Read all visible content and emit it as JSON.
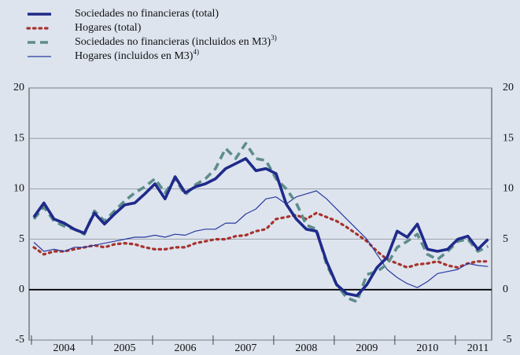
{
  "chart_data": {
    "type": "line",
    "categories": [
      null,
      null,
      null,
      "2004",
      null,
      null,
      null,
      null,
      null,
      "2005",
      null,
      null,
      null,
      null,
      null,
      "2006",
      null,
      null,
      null,
      null,
      null,
      "2007",
      null,
      null,
      null,
      null,
      null,
      "2008",
      null,
      null,
      null,
      null,
      null,
      "2009",
      null,
      null,
      null,
      null,
      null,
      "2010",
      null,
      null,
      null,
      null,
      "2011",
      null
    ],
    "series": [
      {
        "name": "Sociedades no financieras (total)",
        "color": "#1f2a8a",
        "style": "thick",
        "values": [
          7.2,
          8.6,
          7.0,
          6.6,
          6.0,
          5.6,
          7.6,
          6.5,
          7.5,
          8.4,
          8.6,
          9.5,
          10.5,
          9.0,
          11.2,
          9.6,
          10.2,
          10.5,
          11.0,
          12.0,
          12.5,
          13.0,
          11.8,
          12.0,
          11.5,
          8.5,
          7.0,
          6.0,
          5.8,
          2.8,
          0.5,
          -0.4,
          -0.6,
          0.5,
          2.2,
          3.2,
          5.8,
          5.2,
          6.5,
          4.0,
          3.8,
          4.0,
          5.0,
          5.3,
          4.0,
          5.0
        ]
      },
      {
        "name": "Hogares (total)",
        "color": "#a8322d",
        "style": "dotted",
        "values": [
          4.2,
          3.5,
          3.8,
          3.8,
          4.0,
          4.2,
          4.4,
          4.2,
          4.5,
          4.6,
          4.5,
          4.2,
          4.0,
          4.0,
          4.2,
          4.2,
          4.6,
          4.8,
          5.0,
          5.0,
          5.3,
          5.4,
          5.8,
          6.0,
          7.0,
          7.2,
          7.4,
          7.0,
          7.6,
          7.2,
          6.8,
          6.2,
          5.5,
          4.8,
          3.8,
          3.0,
          2.6,
          2.2,
          2.5,
          2.6,
          2.8,
          2.4,
          2.2,
          2.6,
          2.8,
          2.8
        ]
      },
      {
        "name": "Sociedades no financieras (incluidos en M3)",
        "footnote": "3)",
        "color": "#5e8c8c",
        "style": "dashed",
        "values": [
          7.0,
          8.2,
          6.8,
          6.3,
          6.0,
          5.5,
          7.8,
          6.8,
          7.8,
          8.8,
          9.6,
          10.2,
          11.0,
          9.6,
          11.0,
          9.4,
          10.4,
          11.0,
          12.0,
          14.0,
          13.0,
          14.5,
          13.0,
          12.8,
          11.0,
          10.0,
          8.6,
          6.4,
          6.0,
          2.5,
          0.5,
          -0.8,
          -1.2,
          1.5,
          1.8,
          2.5,
          4.2,
          4.8,
          5.5,
          3.5,
          3.0,
          3.8,
          4.8,
          5.0,
          3.8,
          4.3
        ]
      },
      {
        "name": "Hogares (incluidos en M3)",
        "footnote": "4)",
        "color": "#2a3aa0",
        "style": "thin",
        "values": [
          4.7,
          3.8,
          4.0,
          3.8,
          4.2,
          4.2,
          4.4,
          4.6,
          4.8,
          5.0,
          5.2,
          5.2,
          5.4,
          5.2,
          5.5,
          5.4,
          5.8,
          6.0,
          6.0,
          6.6,
          6.6,
          7.5,
          8.0,
          9.0,
          9.2,
          8.5,
          9.2,
          9.5,
          9.8,
          9.0,
          8.0,
          7.0,
          6.0,
          5.0,
          3.5,
          2.0,
          1.2,
          0.6,
          0.2,
          0.8,
          1.6,
          1.8,
          2.0,
          2.6,
          2.4,
          2.3
        ]
      }
    ],
    "ylim": [
      -5,
      20
    ],
    "yticks": [
      -5,
      0,
      5,
      10,
      15,
      20
    ],
    "grid": true
  }
}
